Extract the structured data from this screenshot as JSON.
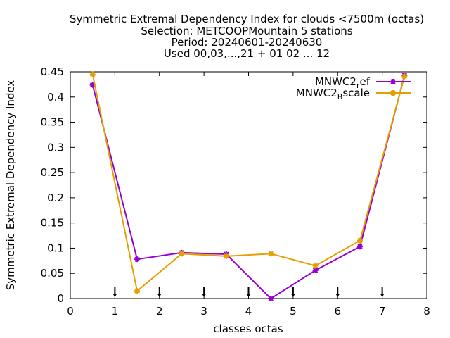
{
  "chart_data": {
    "type": "line",
    "title_lines": [
      "Symmetric Extremal Dependency Index  for clouds <7500m (octas)",
      "Selection: METCOOPMountain      5 stations",
      "Period: 20240601-20240630",
      "Used 00,03,...,21 + 01 02 ... 12"
    ],
    "xlabel": "classes octas",
    "ylabel": "Symmetric Extremal Dependency Index",
    "xlim": [
      0,
      8
    ],
    "ylim": [
      0,
      0.45
    ],
    "xticks": [
      "0",
      "1",
      "2",
      "3",
      "4",
      "5",
      "6",
      "7",
      "8"
    ],
    "yticks": [
      "0",
      "0.05",
      "0.1",
      "0.15",
      "0.2",
      "0.25",
      "0.3",
      "0.35",
      "0.4",
      "0.45"
    ],
    "legend_position": "top-right",
    "x": [
      0.5,
      1.5,
      2.5,
      3.5,
      4.5,
      5.5,
      6.5,
      7.5
    ],
    "series": [
      {
        "name": "MNWC2_ref",
        "legend_base": "MNWC2",
        "legend_sub": "r",
        "legend_tail": "ef",
        "color": "#9400d3",
        "values": [
          0.424,
          0.078,
          0.091,
          0.088,
          0.0,
          0.056,
          0.103,
          0.443
        ]
      },
      {
        "name": "MNWC2_Bscale",
        "legend_base": "MNWC2",
        "legend_sub": "B",
        "legend_tail": "scale",
        "color": "#e69f00",
        "values": [
          0.445,
          0.015,
          0.089,
          0.084,
          0.089,
          0.065,
          0.115,
          0.441
        ]
      }
    ],
    "markers_x": [
      1,
      2,
      3,
      4,
      5,
      6,
      7
    ]
  }
}
